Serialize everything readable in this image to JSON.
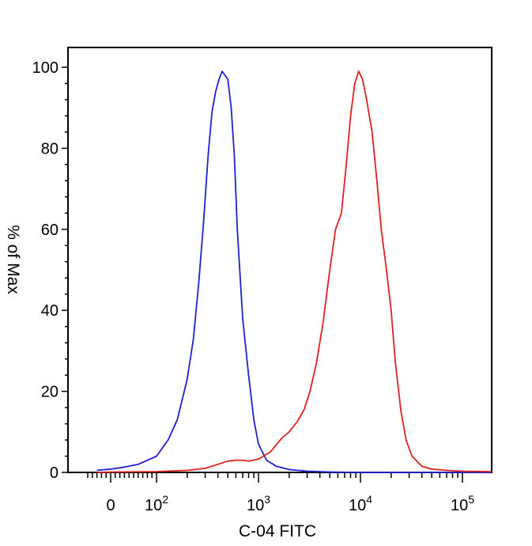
{
  "chart_data": {
    "type": "line",
    "title": "",
    "xlabel": "C-04 FITC",
    "ylabel": "% of Max",
    "x_scale": "biexponential (log above 10^2)",
    "ylim": [
      0,
      100
    ],
    "y_ticks": [
      "0",
      "20",
      "40",
      "60",
      "80",
      "100"
    ],
    "x_ticks": [
      {
        "base": "0",
        "exp": ""
      },
      {
        "base": "10",
        "exp": "2"
      },
      {
        "base": "10",
        "exp": "3"
      },
      {
        "base": "10",
        "exp": "4"
      },
      {
        "base": "10",
        "exp": "5"
      }
    ],
    "grid": false,
    "legend": "none",
    "series": [
      {
        "color": "#2020d0",
        "x": [
          -30,
          0,
          30,
          60,
          100,
          130,
          160,
          200,
          230,
          260,
          290,
          320,
          350,
          380,
          410,
          440,
          470,
          500,
          540,
          580,
          620,
          700,
          800,
          900,
          1000,
          1200,
          1500,
          2000,
          3000,
          5000,
          10000,
          100000,
          250000
        ],
        "y": [
          0.5,
          0.8,
          1.3,
          2.0,
          4.0,
          8.0,
          13.0,
          23.0,
          33.0,
          47.0,
          62.0,
          78.0,
          89.0,
          94.0,
          97.0,
          99.0,
          98.0,
          97.0,
          90.0,
          78.0,
          60.0,
          38.0,
          24.0,
          13.0,
          7.0,
          3.0,
          1.5,
          0.7,
          0.3,
          0.1,
          0.0,
          0.0,
          0.0
        ]
      },
      {
        "color": "#e02020",
        "x": [
          -30,
          0,
          100,
          200,
          300,
          400,
          500,
          600,
          700,
          800,
          1000,
          1300,
          1700,
          2000,
          2400,
          2800,
          3200,
          3700,
          4300,
          5000,
          5700,
          6500,
          7200,
          8000,
          8800,
          9600,
          10500,
          11500,
          13000,
          14500,
          16000,
          18000,
          20000,
          22000,
          25000,
          28000,
          32000,
          40000,
          50000,
          70000,
          100000,
          250000
        ],
        "y": [
          0.0,
          0.1,
          0.2,
          0.5,
          1.0,
          2.0,
          2.8,
          3.0,
          3.0,
          2.8,
          3.3,
          5.0,
          8.5,
          10.0,
          12.5,
          15.5,
          20.0,
          27.0,
          37.0,
          50.0,
          60.0,
          64.0,
          75.0,
          88.0,
          96.0,
          99.0,
          97.0,
          92.0,
          84.0,
          72.0,
          60.0,
          50.0,
          40.0,
          27.0,
          15.0,
          8.0,
          4.0,
          1.5,
          0.8,
          0.5,
          0.3,
          0.2
        ]
      }
    ]
  }
}
